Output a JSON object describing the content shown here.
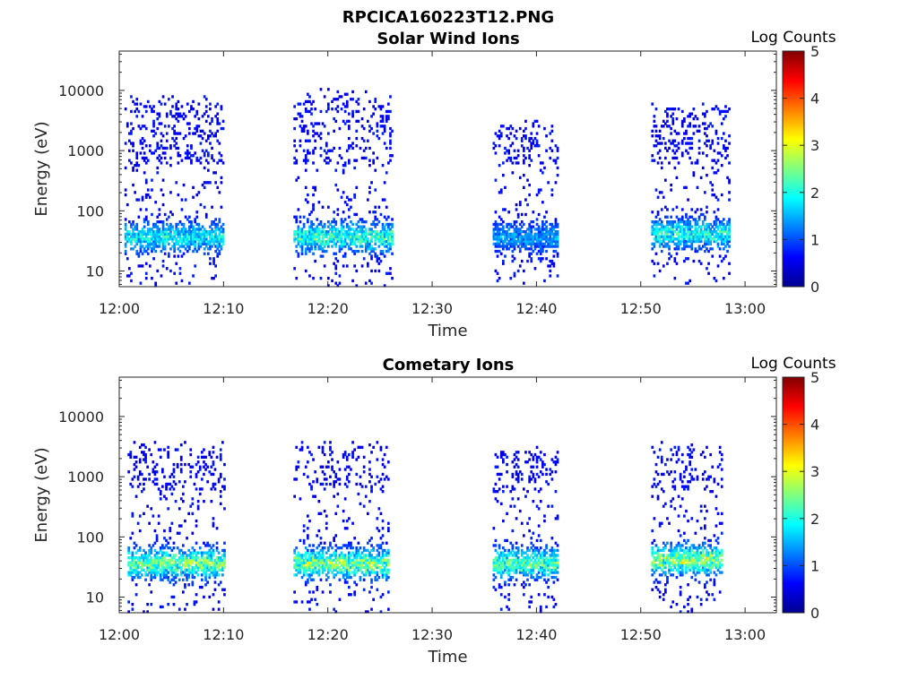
{
  "figure_title": "RPCICA160223T12.PNG",
  "chart_data": [
    {
      "type": "heatmap",
      "title": "Solar Wind Ions",
      "xlabel": "Time",
      "ylabel": "Energy (eV)",
      "x_ticks": [
        "12:00",
        "12:10",
        "12:20",
        "12:30",
        "12:40",
        "12:50",
        "13:00"
      ],
      "xlim_minutes": [
        0,
        63
      ],
      "y_ticks": [
        "10",
        "100",
        "1000",
        "10000"
      ],
      "ylim": [
        5.5,
        45000
      ],
      "yscale": "log",
      "colorbar": {
        "label": "Log Counts",
        "ticks": [
          "0",
          "1",
          "2",
          "3",
          "4",
          "5"
        ],
        "range": [
          0,
          5
        ],
        "colormap": "jet"
      },
      "bursts": [
        {
          "t0": 0.5,
          "t1": 10.0,
          "e_core": 35,
          "e_top": 6000,
          "peak": 1.6
        },
        {
          "t0": 16.7,
          "t1": 26.2,
          "e_core": 35,
          "e_top": 8000,
          "peak": 1.9
        },
        {
          "t0": 35.8,
          "t1": 42.0,
          "e_core": 35,
          "e_top": 2500,
          "peak": 1.1
        },
        {
          "t0": 51.0,
          "t1": 58.5,
          "e_core": 40,
          "e_top": 5000,
          "peak": 1.7
        }
      ]
    },
    {
      "type": "heatmap",
      "title": "Cometary Ions",
      "xlabel": "Time",
      "ylabel": "Energy (eV)",
      "x_ticks": [
        "12:00",
        "12:10",
        "12:20",
        "12:30",
        "12:40",
        "12:50",
        "13:00"
      ],
      "xlim_minutes": [
        0,
        63
      ],
      "y_ticks": [
        "10",
        "100",
        "1000",
        "10000"
      ],
      "ylim": [
        5.5,
        45000
      ],
      "yscale": "log",
      "colorbar": {
        "label": "Log Counts",
        "ticks": [
          "0",
          "1",
          "2",
          "3",
          "4",
          "5"
        ],
        "range": [
          0,
          5
        ],
        "colormap": "jet"
      },
      "bursts": [
        {
          "t0": 0.8,
          "t1": 10.0,
          "e_core": 35,
          "e_top": 3000,
          "peak": 2.2
        },
        {
          "t0": 16.7,
          "t1": 25.8,
          "e_core": 35,
          "e_top": 3000,
          "peak": 2.3
        },
        {
          "t0": 35.8,
          "t1": 42.0,
          "e_core": 35,
          "e_top": 2500,
          "peak": 2.1
        },
        {
          "t0": 51.0,
          "t1": 57.8,
          "e_core": 40,
          "e_top": 3000,
          "peak": 2.4
        }
      ]
    }
  ]
}
